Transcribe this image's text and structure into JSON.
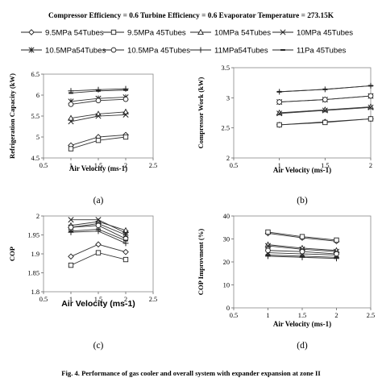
{
  "header": "Compressor Efficiency = 0.6   Turbine Efficiency = 0.6   Evaporator Temperature = 273.15K",
  "legend": [
    {
      "label": "9.5MPa 54Tubes",
      "marker": "diamond"
    },
    {
      "label": "9.5MPa 45Tubes",
      "marker": "square"
    },
    {
      "label": "10MPa 54Tubes",
      "marker": "triangle"
    },
    {
      "label": "10MPa 45Tubes",
      "marker": "x"
    },
    {
      "label": "10.5MPa54Tubes",
      "marker": "star"
    },
    {
      "label": "10.5MPa 45Tubes",
      "marker": "circle"
    },
    {
      "label": "11MPa54Tubes",
      "marker": "plus"
    },
    {
      "label": "11Pa 45Tubes",
      "marker": "dash"
    }
  ],
  "caption": "Fig. 4. Performance of gas cooler and overall system with expander expansion at zone II",
  "chart_data": [
    {
      "type": "line",
      "panel_label": "(a)",
      "xlabel": "Air Velocity (ms-1)",
      "ylabel": "Refrigeration Capacity (kW)",
      "xlim": [
        0.5,
        2.5
      ],
      "ylim": [
        4.5,
        6.5
      ],
      "xticks": [
        "0.5",
        "1",
        "1.5",
        "2",
        "2.5"
      ],
      "yticks": [
        "4.5",
        "5",
        "5.5",
        "6",
        "6.5"
      ],
      "x": [
        1,
        1.5,
        2
      ],
      "series": [
        {
          "name": "9.5MPa 54Tubes",
          "values": [
            4.8,
            5.0,
            5.05
          ]
        },
        {
          "name": "9.5MPa 45Tubes",
          "values": [
            4.72,
            4.92,
            5.0
          ]
        },
        {
          "name": "10MPa 54Tubes",
          "values": [
            5.45,
            5.55,
            5.6
          ]
        },
        {
          "name": "10MPa 45Tubes",
          "values": [
            5.37,
            5.5,
            5.53
          ]
        },
        {
          "name": "10.5MPa54Tubes",
          "values": [
            5.85,
            5.92,
            5.95
          ]
        },
        {
          "name": "10.5MPa 45Tubes",
          "values": [
            5.78,
            5.87,
            5.9
          ]
        },
        {
          "name": "11MPa54Tubes",
          "values": [
            6.1,
            6.13,
            6.15
          ]
        },
        {
          "name": "11Pa 45Tubes",
          "values": [
            6.05,
            6.1,
            6.12
          ]
        }
      ]
    },
    {
      "type": "line",
      "panel_label": "(b)",
      "xlabel": "Air Velocity (ms-1)",
      "ylabel": "Compressor Work (kW)",
      "xlim": [
        0.5,
        2
      ],
      "ylim": [
        2,
        3.5
      ],
      "xticks": [
        "0.5",
        "1",
        "1.5",
        "2"
      ],
      "yticks": [
        "2",
        "2.5",
        "3",
        "3.5"
      ],
      "x": [
        1,
        1.5,
        2
      ],
      "series": [
        {
          "name": "9.5MPa 54Tubes",
          "values": [
            2.55,
            2.6,
            2.65
          ]
        },
        {
          "name": "9.5MPa 45Tubes",
          "values": [
            2.55,
            2.59,
            2.65
          ]
        },
        {
          "name": "10MPa 54Tubes",
          "values": [
            2.75,
            2.8,
            2.85
          ]
        },
        {
          "name": "10MPa 45Tubes",
          "values": [
            2.74,
            2.79,
            2.84
          ]
        },
        {
          "name": "10.5MPa54Tubes",
          "values": [
            2.93,
            2.97,
            3.03
          ]
        },
        {
          "name": "10.5MPa 45Tubes",
          "values": [
            2.93,
            2.97,
            3.03
          ]
        },
        {
          "name": "11MPa54Tubes",
          "values": [
            3.1,
            3.14,
            3.2
          ]
        },
        {
          "name": "11Pa 45Tubes",
          "values": [
            3.1,
            3.14,
            3.2
          ]
        }
      ]
    },
    {
      "type": "line",
      "panel_label": "(c)",
      "xlabel": "Air Velocity (ms-1)",
      "ylabel": "COP",
      "xlim": [
        0.5,
        2.5
      ],
      "ylim": [
        1.8,
        2.0
      ],
      "xticks": [
        "0.5",
        "1",
        "1.5",
        "2",
        "2.5"
      ],
      "yticks": [
        "1.8",
        "1.85",
        "1.9",
        "1.95",
        "2"
      ],
      "x": [
        1,
        1.5,
        2
      ],
      "series": [
        {
          "name": "9.5MPa 54Tubes",
          "values": [
            1.893,
            1.925,
            1.905
          ]
        },
        {
          "name": "9.5MPa 45Tubes",
          "values": [
            1.87,
            1.903,
            1.885
          ]
        },
        {
          "name": "10MPa 54Tubes",
          "values": [
            1.975,
            1.985,
            1.962
          ]
        },
        {
          "name": "10MPa 45Tubes",
          "values": [
            1.99,
            1.99,
            1.955
          ]
        },
        {
          "name": "10.5MPa54Tubes",
          "values": [
            1.97,
            1.98,
            1.95
          ]
        },
        {
          "name": "10.5MPa 45Tubes",
          "values": [
            1.97,
            1.975,
            1.94
          ]
        },
        {
          "name": "11MPa54Tubes",
          "values": [
            1.957,
            1.96,
            1.928
          ]
        },
        {
          "name": "11Pa 45Tubes",
          "values": [
            1.96,
            1.965,
            1.935
          ]
        }
      ]
    },
    {
      "type": "line",
      "panel_label": "(d)",
      "xlabel": "Air Velocity (ms-1)",
      "ylabel": "COP Improvment (%)",
      "xlim": [
        0.5,
        2.5
      ],
      "ylim": [
        0,
        40
      ],
      "xticks": [
        "0.5",
        "1",
        "1.5",
        "2",
        "2.5"
      ],
      "yticks": [
        "0",
        "10",
        "20",
        "30",
        "40"
      ],
      "x": [
        1,
        1.5,
        2
      ],
      "series": [
        {
          "name": "9.5MPa 54Tubes",
          "values": [
            32.5,
            30.5,
            29.0
          ]
        },
        {
          "name": "9.5MPa 45Tubes",
          "values": [
            33.0,
            31.0,
            29.5
          ]
        },
        {
          "name": "10MPa 54Tubes",
          "values": [
            27.5,
            26.0,
            25.0
          ]
        },
        {
          "name": "10MPa 45Tubes",
          "values": [
            27.0,
            25.5,
            24.5
          ]
        },
        {
          "name": "10.5MPa54Tubes",
          "values": [
            24.0,
            23.5,
            23.0
          ]
        },
        {
          "name": "10.5MPa 45Tubes",
          "values": [
            25.0,
            24.5,
            23.5
          ]
        },
        {
          "name": "11MPa54Tubes",
          "values": [
            22.5,
            22.0,
            21.5
          ]
        },
        {
          "name": "11Pa 45Tubes",
          "values": [
            23.0,
            22.5,
            22.0
          ]
        }
      ]
    }
  ]
}
